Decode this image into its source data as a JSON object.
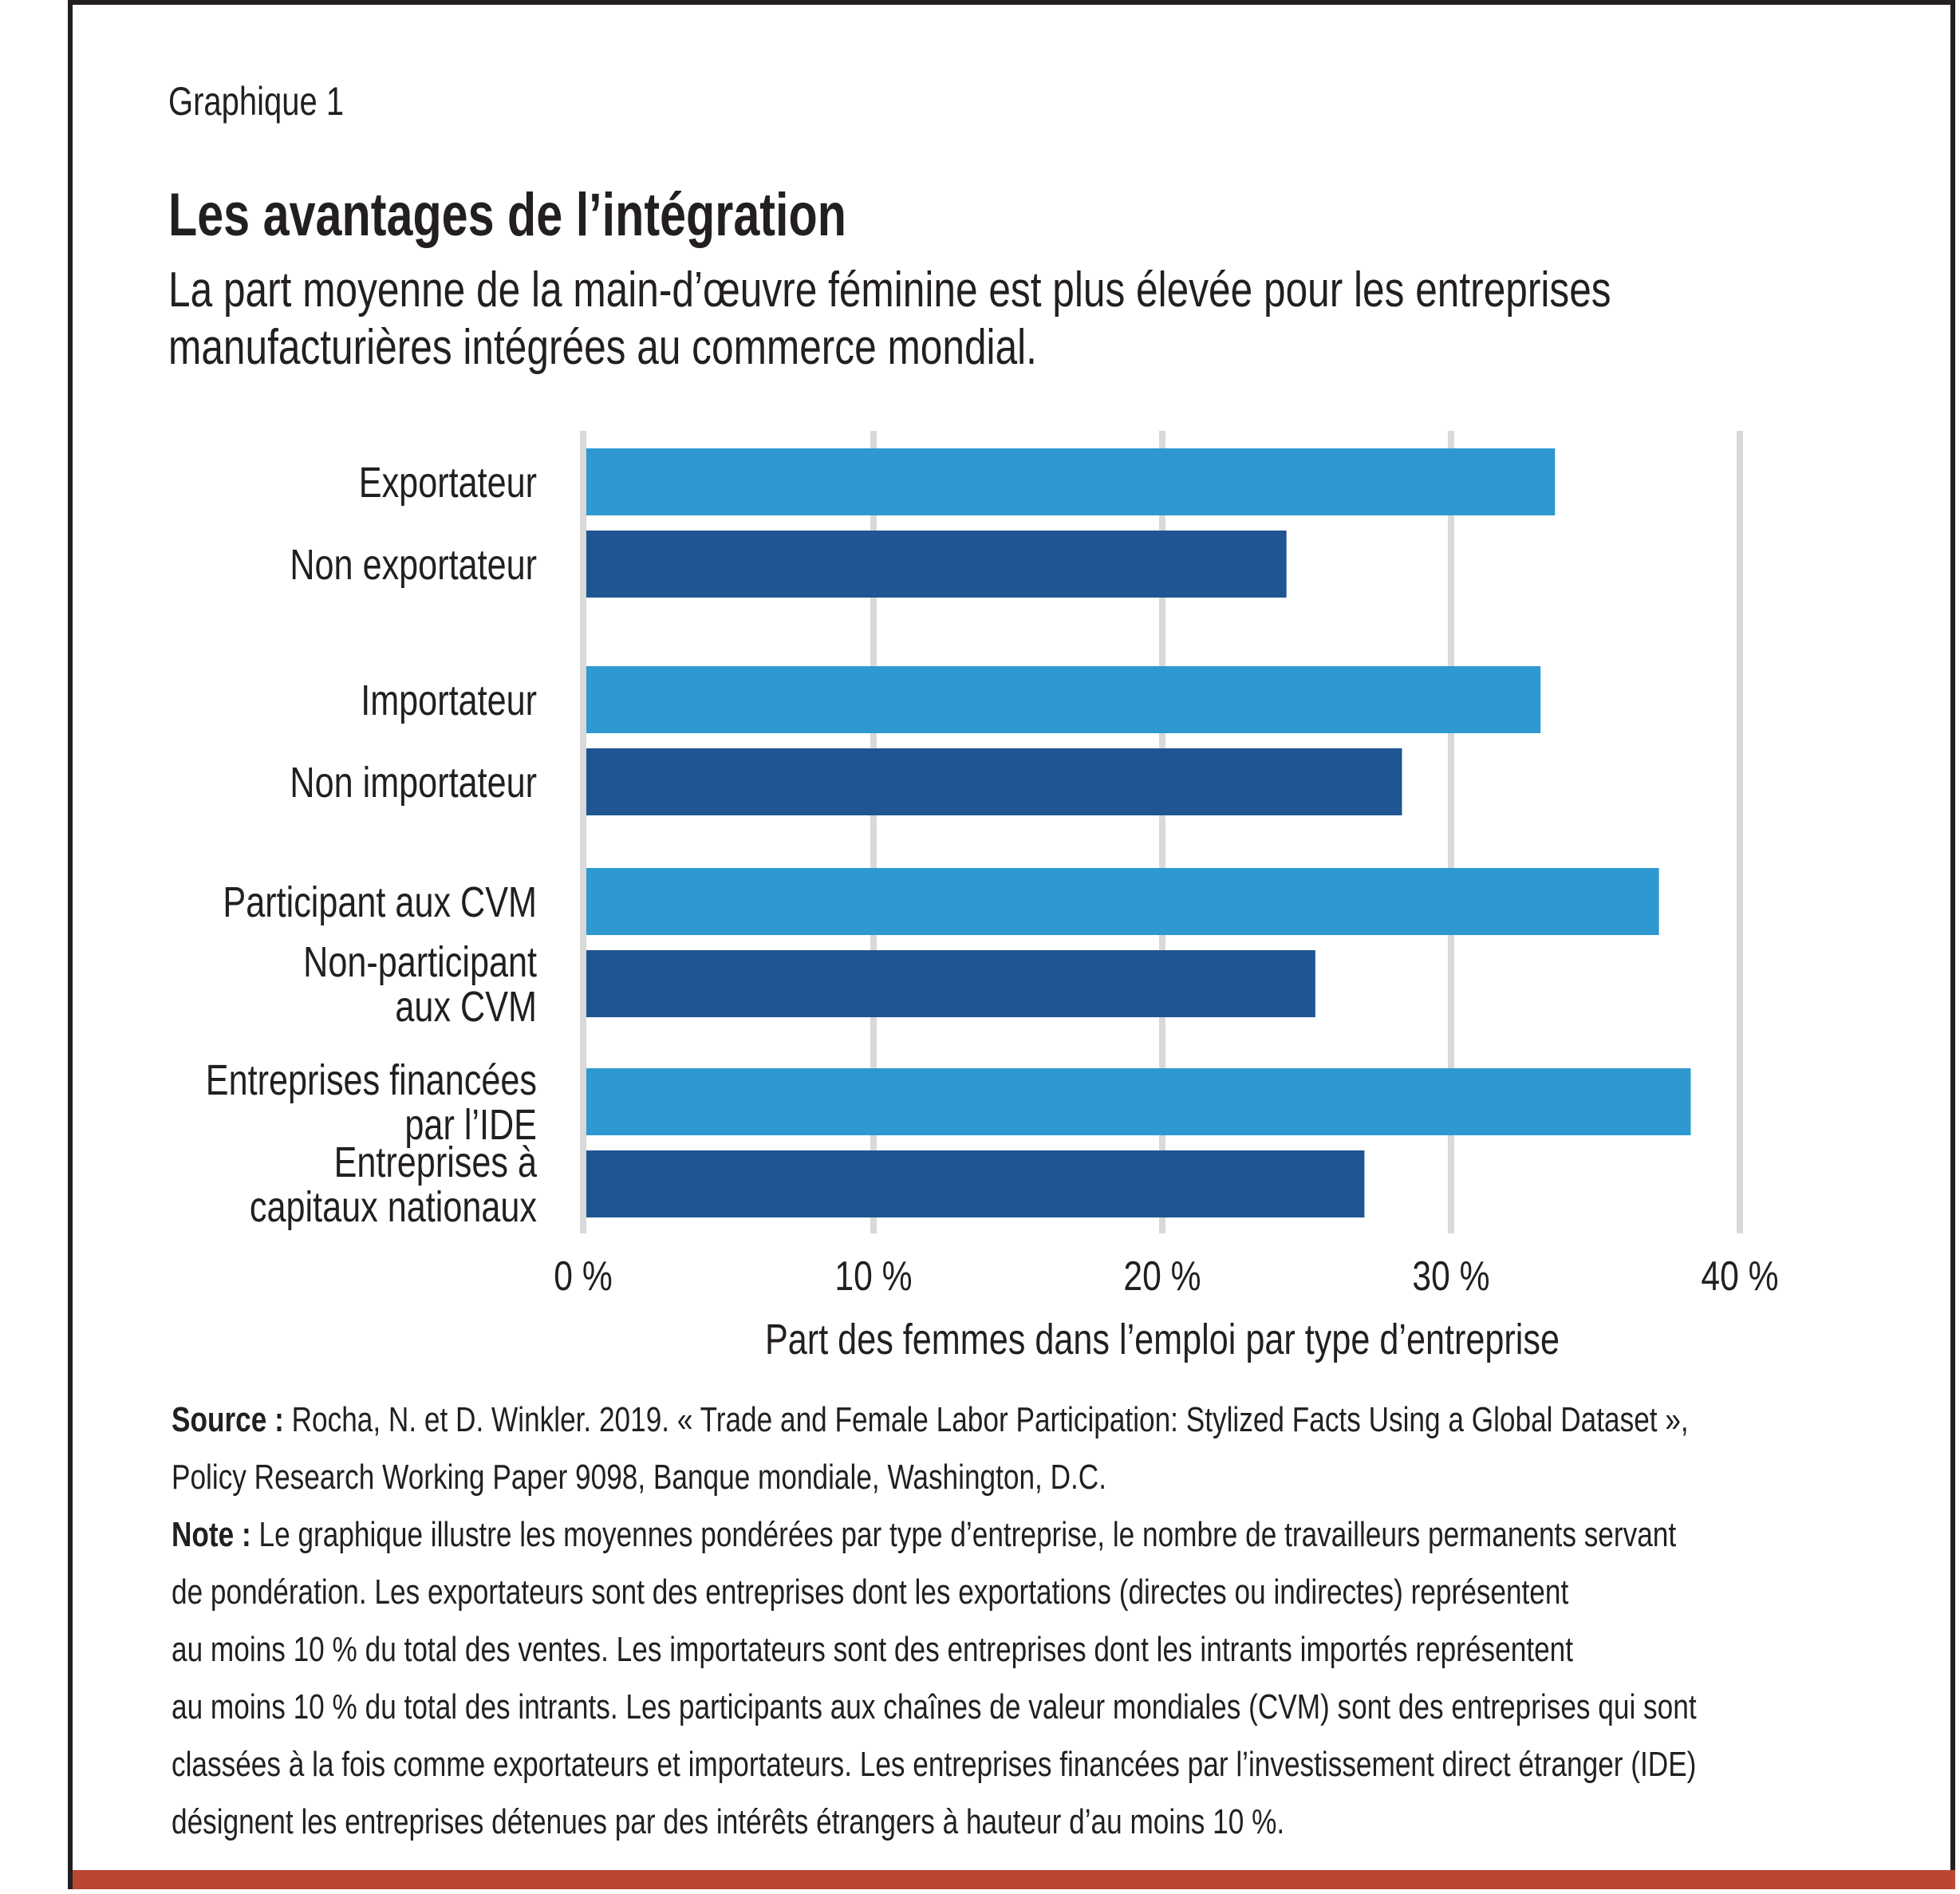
{
  "figure_label": "Graphique 1",
  "title": "Les avantages de l’intégration",
  "subtitle_lines": [
    "La part moyenne de la main-d’œuvre féminine est plus élevée pour les entreprises",
    "manufacturières intégrées au commerce mondial."
  ],
  "colors": {
    "integrated": "#2e98d0",
    "non_integrated": "#1f5592",
    "gridline": "#d9d9d9",
    "frame": "#231f20",
    "accent_bar": "#bb4631"
  },
  "chart_data": {
    "type": "bar",
    "orientation": "horizontal",
    "title": "Les avantages de l’intégration",
    "xlabel": "Part des femmes dans l’emploi par type d’entreprise",
    "ylabel": "",
    "xlim": [
      0,
      40
    ],
    "xticks": [
      0,
      10,
      20,
      30,
      40
    ],
    "xtick_labels": [
      "0 %",
      "10 %",
      "20 %",
      "30 %",
      "40 %"
    ],
    "grid": true,
    "legend": null,
    "groups": [
      {
        "bars": [
          {
            "label_lines": [
              "Exportateur"
            ],
            "value": 33.6,
            "kind": "integrated"
          },
          {
            "label_lines": [
              "Non exportateur"
            ],
            "value": 24.3,
            "kind": "non_integrated"
          }
        ]
      },
      {
        "bars": [
          {
            "label_lines": [
              "Importateur"
            ],
            "value": 33.1,
            "kind": "integrated"
          },
          {
            "label_lines": [
              "Non importateur"
            ],
            "value": 28.3,
            "kind": "non_integrated"
          }
        ]
      },
      {
        "bars": [
          {
            "label_lines": [
              "Participant aux CVM"
            ],
            "value": 37.2,
            "kind": "integrated"
          },
          {
            "label_lines": [
              "Non-participant",
              "aux CVM"
            ],
            "value": 25.3,
            "kind": "non_integrated"
          }
        ]
      },
      {
        "bars": [
          {
            "label_lines": [
              "Entreprises financées",
              "par l’IDE"
            ],
            "value": 38.3,
            "kind": "integrated"
          },
          {
            "label_lines": [
              "Entreprises à",
              "capitaux nationaux"
            ],
            "value": 27.0,
            "kind": "non_integrated"
          }
        ]
      }
    ]
  },
  "source": {
    "label": "Source :",
    "lines": [
      " Rocha, N. et D. Winkler. 2019. « Trade and Female Labor Participation: Stylized Facts Using a Global Dataset »,",
      "Policy Research Working Paper 9098, Banque mondiale, Washington, D.C."
    ]
  },
  "note": {
    "label": "Note :",
    "lines": [
      " Le graphique illustre les moyennes pondérées par type d’entreprise, le nombre de travailleurs permanents servant",
      "de pondération. Les exportateurs sont des entreprises dont les exportations (directes ou indirectes) représentent",
      "au moins 10 % du total des ventes. Les importateurs sont des entreprises dont les intrants importés représentent",
      "au moins 10 % du total des intrants. Les participants aux chaînes de valeur mondiales (CVM) sont des entreprises qui sont",
      "classées à la fois comme exportateurs et importateurs. Les entreprises financées par l’investissement direct étranger (IDE)",
      "désignent les entreprises détenues par des intérêts étrangers à hauteur d’au moins 10 %."
    ]
  }
}
